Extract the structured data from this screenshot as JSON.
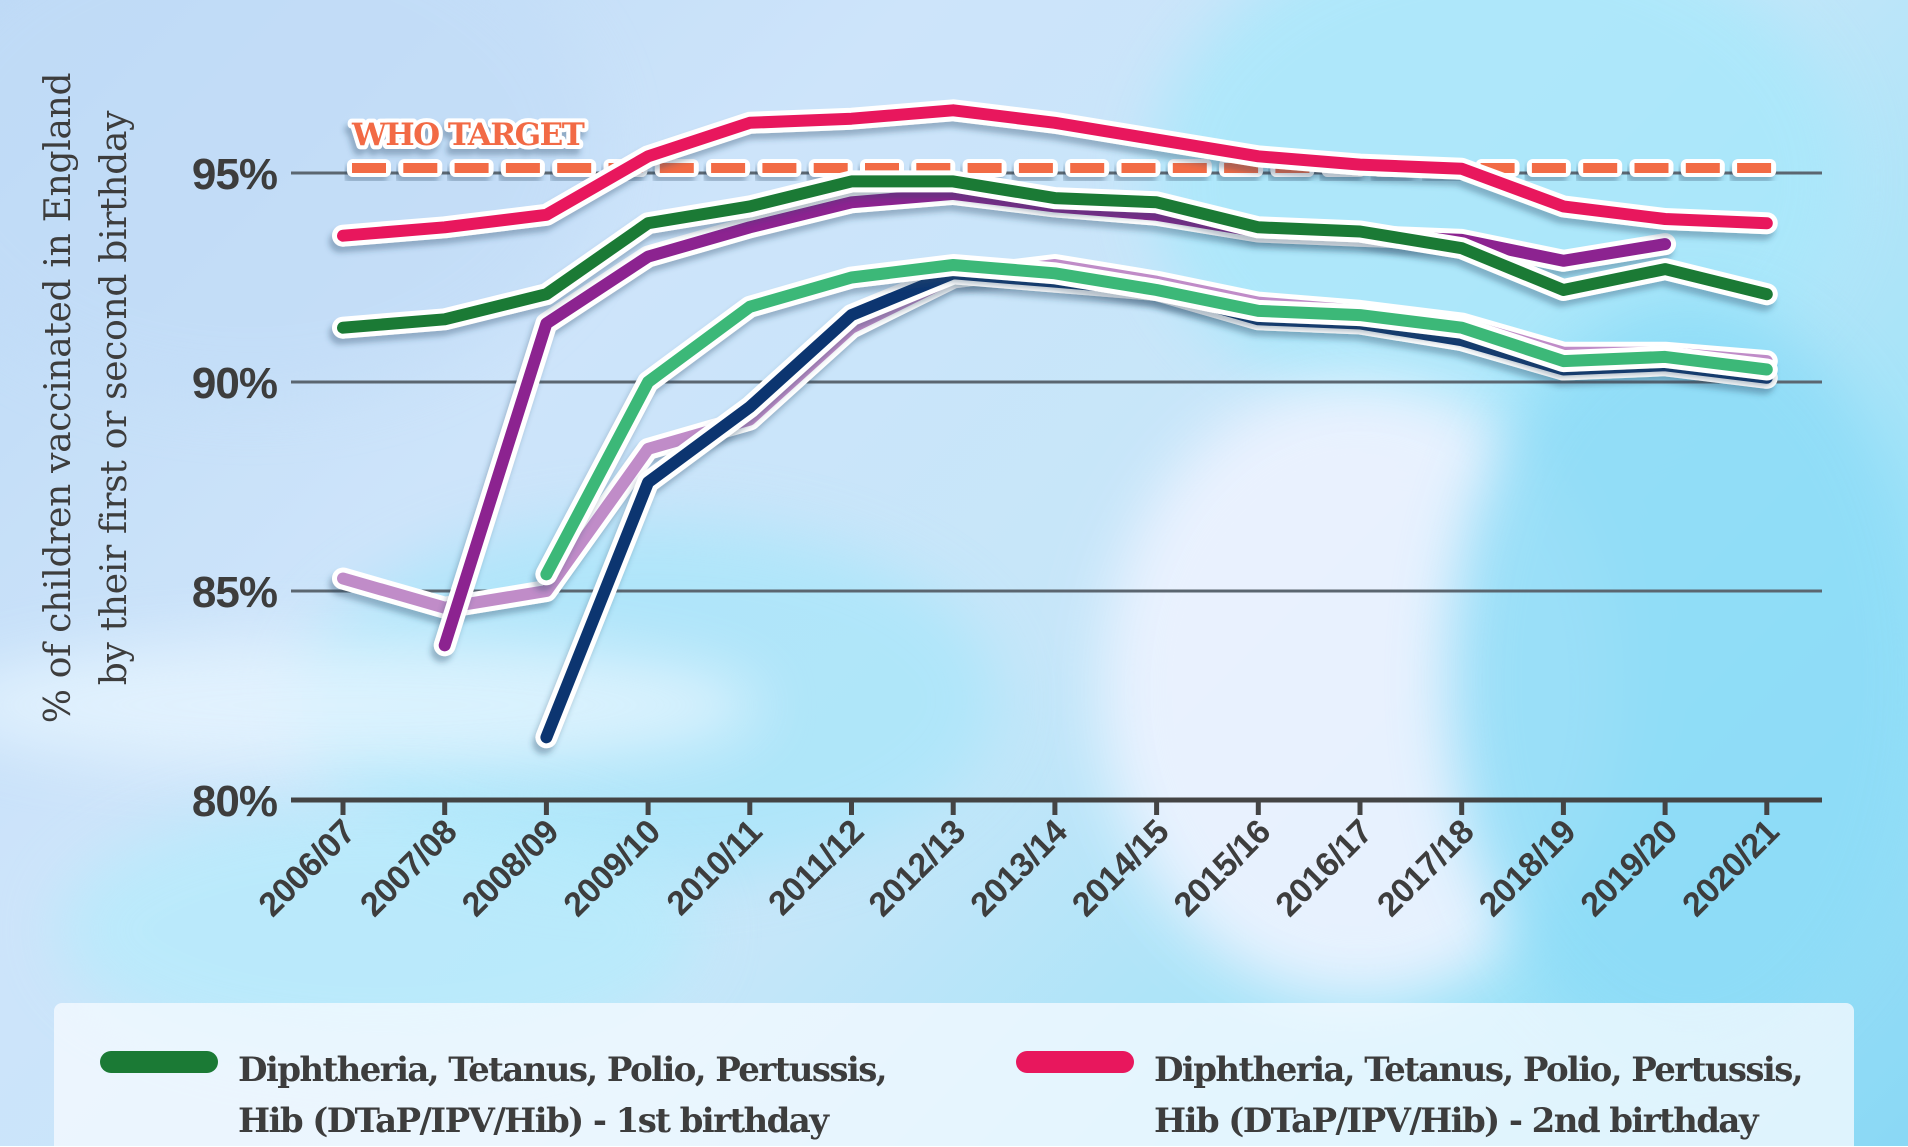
{
  "chart_data": {
    "type": "line",
    "title": "",
    "ylabel_lines": [
      "% of children vaccinated in England",
      "by their first or second birthday"
    ],
    "xlabel": "",
    "ylim": [
      80,
      97
    ],
    "yticks": [
      80,
      85,
      90,
      95
    ],
    "ytick_labels": [
      "80%",
      "85%",
      "90%",
      "95%"
    ],
    "grid": "horizontal",
    "categories": [
      "2006/07",
      "2007/08",
      "2008/09",
      "2009/10",
      "2010/11",
      "2011/12",
      "2012/13",
      "2013/14",
      "2014/15",
      "2015/16",
      "2016/17",
      "2017/18",
      "2018/19",
      "2019/20",
      "2020/21"
    ],
    "reference_line": {
      "label": "WHO TARGET",
      "value": 95,
      "color": "#f26b45",
      "style": "dashed"
    },
    "legend_position": "bottom",
    "series": [
      {
        "name": "Diphtheria, Tetanus, Polio, Pertussis, Hib (DTaP/IPV/Hib) - 1st birthday",
        "color": "#1b7a35",
        "in_legend": true,
        "values": [
          91.3,
          91.5,
          92.1,
          93.8,
          94.2,
          94.8,
          94.8,
          94.4,
          94.3,
          93.7,
          93.6,
          93.2,
          92.2,
          92.7,
          92.1
        ]
      },
      {
        "name": "Diphtheria, Tetanus, Polio, Pertussis, Hib (DTaP/IPV/Hib) - 2nd birthday",
        "color": "#e8175d",
        "in_legend": true,
        "values": [
          93.5,
          93.7,
          94.0,
          95.4,
          96.2,
          96.3,
          96.5,
          96.2,
          95.8,
          95.4,
          95.2,
          95.1,
          94.2,
          93.9,
          93.8
        ]
      },
      {
        "name": "purple-series",
        "color": "#8c2390",
        "in_legend": false,
        "values": [
          null,
          83.7,
          91.4,
          93.0,
          93.7,
          94.3,
          94.5,
          94.2,
          94.0,
          93.6,
          93.5,
          93.4,
          92.9,
          93.3,
          null
        ]
      },
      {
        "name": "light-green-series",
        "color": "#3cb878",
        "in_legend": false,
        "values": [
          null,
          null,
          85.4,
          90.0,
          91.8,
          92.5,
          92.8,
          92.6,
          92.2,
          91.7,
          91.6,
          91.3,
          90.5,
          90.6,
          90.3
        ]
      },
      {
        "name": "lilac-series",
        "color": "#c08cc8",
        "in_legend": false,
        "values": [
          85.3,
          84.6,
          85.0,
          88.4,
          89.1,
          91.3,
          92.5,
          92.8,
          92.4,
          91.9,
          91.7,
          91.4,
          90.7,
          90.7,
          90.5
        ]
      },
      {
        "name": "navy-series",
        "color": "#0c3570",
        "in_legend": false,
        "values": [
          null,
          null,
          81.5,
          87.6,
          89.4,
          91.6,
          92.6,
          92.4,
          92.2,
          91.5,
          91.4,
          91.0,
          90.3,
          90.4,
          90.1
        ]
      }
    ]
  },
  "legend": {
    "items": [
      {
        "line1": "Diphtheria, Tetanus, Polio, Pertussis,",
        "line2": "Hib (DTaP/IPV/Hib) - 1st birthday",
        "color": "#1b7a35"
      },
      {
        "line1": "Diphtheria, Tetanus, Polio, Pertussis,",
        "line2": "Hib (DTaP/IPV/Hib) - 2nd birthday",
        "color": "#e8175d"
      }
    ]
  },
  "colors": {
    "axis": "#444444",
    "grid": "#5b6670",
    "text": "#3d3d3d",
    "target": "#f26b45"
  }
}
